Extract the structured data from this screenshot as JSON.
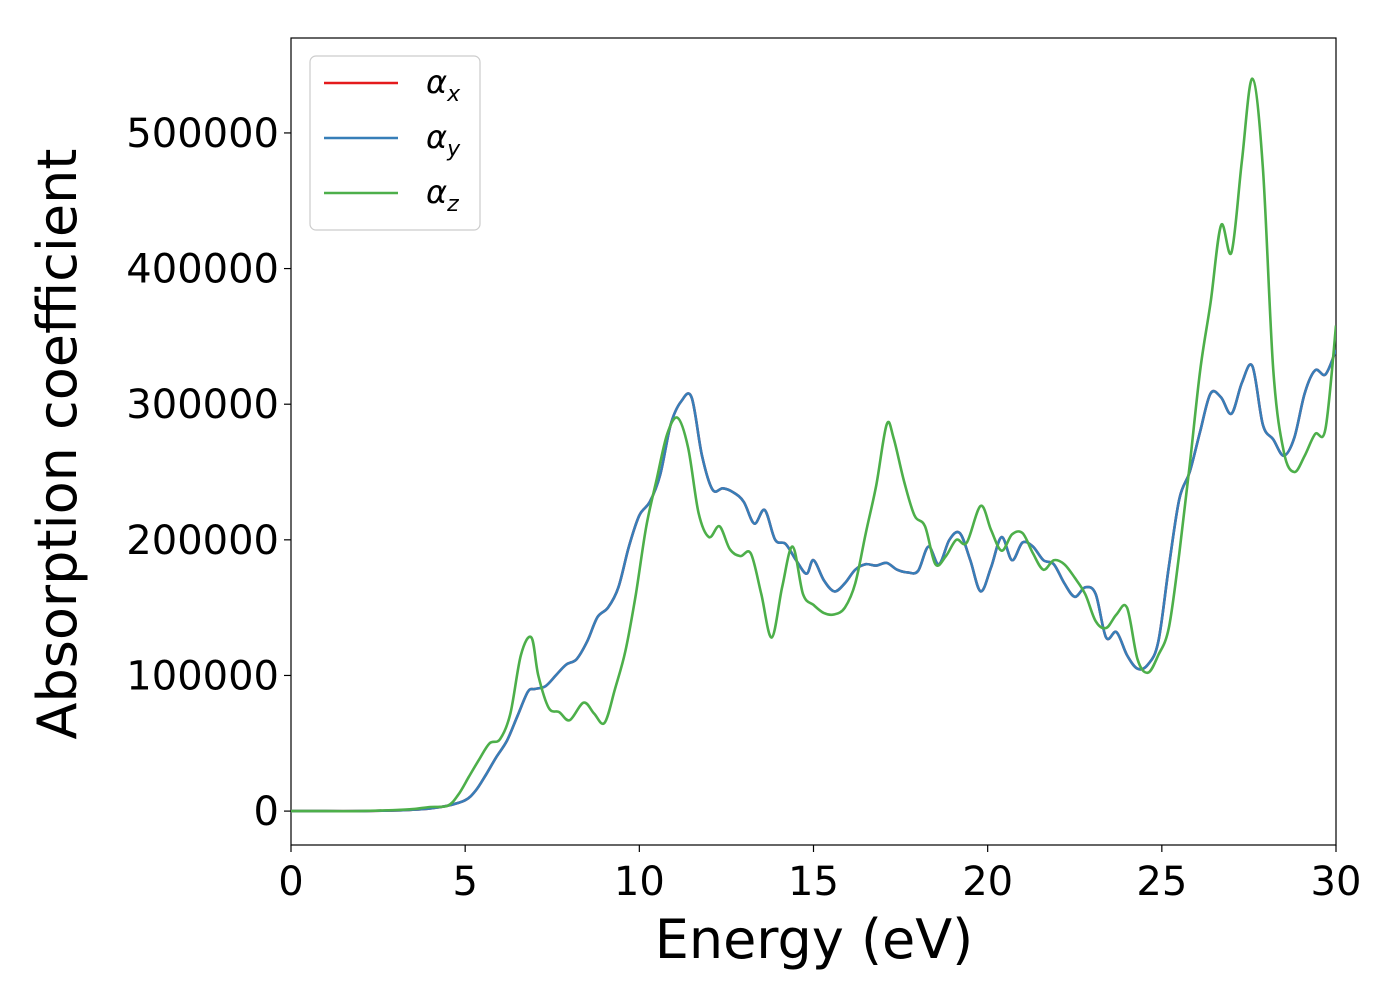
{
  "chart_data": {
    "type": "line",
    "title": "",
    "xlabel": "Energy (eV)",
    "ylabel": "Absorption coefficient",
    "xlim": [
      0,
      30
    ],
    "ylim": [
      -25000,
      570000
    ],
    "xticks": [
      0,
      5,
      10,
      15,
      20,
      25,
      30
    ],
    "xtick_labels": [
      "0",
      "5",
      "10",
      "15",
      "20",
      "25",
      "30"
    ],
    "yticks": [
      0,
      100000,
      200000,
      300000,
      400000,
      500000
    ],
    "ytick_labels": [
      "0",
      "100000",
      "200000",
      "300000",
      "400000",
      "500000"
    ],
    "grid": false,
    "legend_position": "top-left",
    "series": [
      {
        "name": "α_x",
        "symbol": "α",
        "subscript": "x",
        "color": "#e41a1c",
        "x": [
          0,
          1,
          2,
          3,
          3.5,
          4,
          4.5,
          5,
          5.3,
          5.6,
          5.9,
          6.2,
          6.5,
          6.8,
          7,
          7.3,
          7.6,
          7.9,
          8.2,
          8.5,
          8.8,
          9.1,
          9.4,
          9.7,
          10,
          10.3,
          10.6,
          10.9,
          11.2,
          11.5,
          11.8,
          12.1,
          12.4,
          12.7,
          13,
          13.3,
          13.6,
          13.9,
          14.2,
          14.5,
          14.8,
          15,
          15.3,
          15.6,
          15.9,
          16.2,
          16.5,
          16.8,
          17.1,
          17.4,
          17.7,
          18,
          18.3,
          18.6,
          18.9,
          19.2,
          19.5,
          19.8,
          20.1,
          20.4,
          20.7,
          21,
          21.3,
          21.6,
          21.9,
          22.2,
          22.5,
          22.8,
          23.1,
          23.4,
          23.7,
          24,
          24.3,
          24.6,
          24.9,
          25.2,
          25.5,
          25.8,
          26.1,
          26.4,
          26.7,
          27,
          27.3,
          27.6,
          27.9,
          28.2,
          28.5,
          28.8,
          29.1,
          29.4,
          29.7,
          30
        ],
        "values": [
          0,
          0,
          0,
          500,
          1000,
          2000,
          4000,
          8000,
          15000,
          27000,
          40000,
          52000,
          70000,
          88000,
          90000,
          92000,
          100000,
          108000,
          112000,
          125000,
          143000,
          150000,
          165000,
          195000,
          218000,
          228000,
          248000,
          285000,
          302000,
          305000,
          262000,
          237000,
          238000,
          235000,
          228000,
          212000,
          222000,
          200000,
          197000,
          185000,
          175000,
          185000,
          170000,
          162000,
          168000,
          178000,
          182000,
          181000,
          183000,
          178000,
          176000,
          177000,
          195000,
          182000,
          200000,
          205000,
          185000,
          162000,
          180000,
          202000,
          185000,
          198000,
          195000,
          185000,
          182000,
          168000,
          158000,
          165000,
          160000,
          128000,
          132000,
          115000,
          105000,
          108000,
          125000,
          180000,
          230000,
          250000,
          280000,
          308000,
          305000,
          293000,
          316000,
          328000,
          285000,
          274000,
          262000,
          275000,
          308000,
          325000,
          322000,
          340000
        ]
      },
      {
        "name": "α_y",
        "symbol": "α",
        "subscript": "y",
        "color": "#377eb8",
        "x": [
          0,
          1,
          2,
          3,
          3.5,
          4,
          4.5,
          5,
          5.3,
          5.6,
          5.9,
          6.2,
          6.5,
          6.8,
          7,
          7.3,
          7.6,
          7.9,
          8.2,
          8.5,
          8.8,
          9.1,
          9.4,
          9.7,
          10,
          10.3,
          10.6,
          10.9,
          11.2,
          11.5,
          11.8,
          12.1,
          12.4,
          12.7,
          13,
          13.3,
          13.6,
          13.9,
          14.2,
          14.5,
          14.8,
          15,
          15.3,
          15.6,
          15.9,
          16.2,
          16.5,
          16.8,
          17.1,
          17.4,
          17.7,
          18,
          18.3,
          18.6,
          18.9,
          19.2,
          19.5,
          19.8,
          20.1,
          20.4,
          20.7,
          21,
          21.3,
          21.6,
          21.9,
          22.2,
          22.5,
          22.8,
          23.1,
          23.4,
          23.7,
          24,
          24.3,
          24.6,
          24.9,
          25.2,
          25.5,
          25.8,
          26.1,
          26.4,
          26.7,
          27,
          27.3,
          27.6,
          27.9,
          28.2,
          28.5,
          28.8,
          29.1,
          29.4,
          29.7,
          30
        ],
        "values": [
          0,
          0,
          0,
          500,
          1000,
          2000,
          4000,
          8000,
          15000,
          27000,
          40000,
          52000,
          70000,
          88000,
          90000,
          92000,
          100000,
          108000,
          112000,
          125000,
          143000,
          150000,
          165000,
          195000,
          218000,
          228000,
          248000,
          285000,
          302000,
          305000,
          262000,
          237000,
          238000,
          235000,
          228000,
          212000,
          222000,
          200000,
          197000,
          185000,
          175000,
          185000,
          170000,
          162000,
          168000,
          178000,
          182000,
          181000,
          183000,
          178000,
          176000,
          177000,
          195000,
          182000,
          200000,
          205000,
          185000,
          162000,
          180000,
          202000,
          185000,
          198000,
          195000,
          185000,
          182000,
          168000,
          158000,
          165000,
          160000,
          128000,
          132000,
          115000,
          105000,
          108000,
          125000,
          180000,
          230000,
          250000,
          280000,
          308000,
          305000,
          293000,
          316000,
          328000,
          285000,
          274000,
          262000,
          275000,
          308000,
          325000,
          322000,
          340000
        ]
      },
      {
        "name": "α_z",
        "symbol": "α",
        "subscript": "z",
        "color": "#4daf4a",
        "x": [
          0,
          1,
          2,
          3,
          3.5,
          4,
          4.5,
          4.8,
          5.1,
          5.4,
          5.7,
          6,
          6.3,
          6.6,
          6.9,
          7.1,
          7.4,
          7.7,
          8,
          8.4,
          8.7,
          9,
          9.3,
          9.6,
          9.9,
          10.2,
          10.5,
          10.8,
          11.1,
          11.4,
          11.7,
          12,
          12.3,
          12.6,
          12.9,
          13.2,
          13.5,
          13.8,
          14.1,
          14.4,
          14.7,
          15,
          15.3,
          15.6,
          15.9,
          16.2,
          16.5,
          16.8,
          17.1,
          17.3,
          17.6,
          17.9,
          18.2,
          18.5,
          18.8,
          19.1,
          19.4,
          19.8,
          20.1,
          20.4,
          20.7,
          21,
          21.3,
          21.6,
          21.9,
          22.2,
          22.5,
          22.8,
          23.1,
          23.4,
          23.7,
          24,
          24.3,
          24.6,
          24.9,
          25.2,
          25.5,
          25.8,
          26.1,
          26.4,
          26.7,
          27,
          27.3,
          27.6,
          27.9,
          28.2,
          28.5,
          28.8,
          29.1,
          29.4,
          29.7,
          30
        ],
        "values": [
          0,
          0,
          0,
          800,
          1500,
          3000,
          4000,
          12000,
          25000,
          38000,
          50000,
          53000,
          72000,
          115000,
          128000,
          100000,
          76000,
          73000,
          67000,
          80000,
          72000,
          65000,
          90000,
          118000,
          160000,
          210000,
          245000,
          278000,
          290000,
          268000,
          220000,
          202000,
          210000,
          193000,
          188000,
          190000,
          160000,
          128000,
          165000,
          195000,
          160000,
          152000,
          146000,
          145000,
          150000,
          168000,
          205000,
          240000,
          285000,
          275000,
          243000,
          218000,
          210000,
          182000,
          188000,
          200000,
          198000,
          225000,
          207000,
          192000,
          204000,
          205000,
          190000,
          178000,
          185000,
          182000,
          172000,
          160000,
          140000,
          135000,
          145000,
          150000,
          112000,
          102000,
          115000,
          135000,
          190000,
          255000,
          325000,
          375000,
          432000,
          412000,
          480000,
          540000,
          475000,
          325000,
          265000,
          250000,
          262000,
          278000,
          282000,
          358000
        ]
      }
    ]
  }
}
